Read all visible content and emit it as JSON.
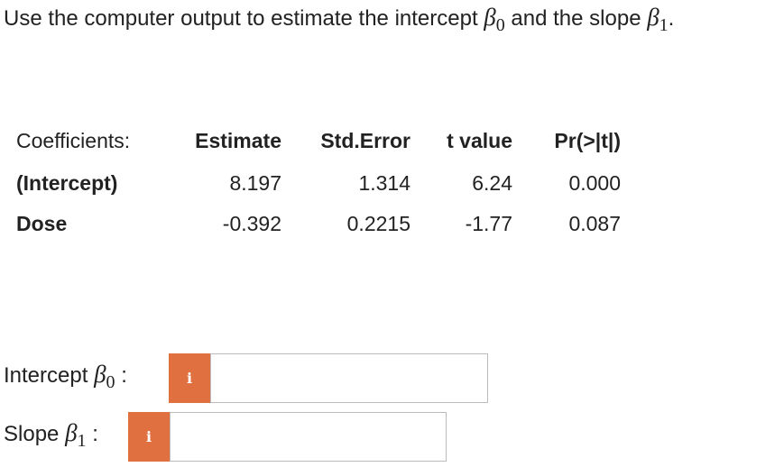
{
  "question": {
    "text": "Use the computer output to estimate the intercept",
    "beta0": "β",
    "sub0": "0",
    "middle": "and the slope",
    "beta1": "β",
    "sub1": "1",
    "end": "."
  },
  "table": {
    "header": [
      "Coefficients:",
      "Estimate",
      "Std.Error",
      "t value",
      "Pr(>|t|)"
    ],
    "rows": [
      [
        "(Intercept)",
        "8.197",
        "1.314",
        "6.24",
        "0.000"
      ],
      [
        "Dose",
        "-0.392",
        "0.2215",
        "-1.77",
        "0.087"
      ]
    ]
  },
  "answers": [
    {
      "label": "Intercept",
      "symbol": "β",
      "sub": "0",
      "colon": ":",
      "icon": "i"
    },
    {
      "label": "Slope",
      "symbol": "β",
      "sub": "1",
      "colon": ":",
      "icon": "i"
    }
  ]
}
